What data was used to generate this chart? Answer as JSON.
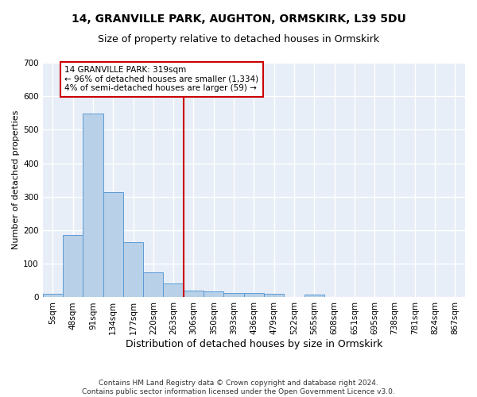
{
  "title1": "14, GRANVILLE PARK, AUGHTON, ORMSKIRK, L39 5DU",
  "title2": "Size of property relative to detached houses in Ormskirk",
  "xlabel": "Distribution of detached houses by size in Ormskirk",
  "ylabel": "Number of detached properties",
  "footer1": "Contains HM Land Registry data © Crown copyright and database right 2024.",
  "footer2": "Contains public sector information licensed under the Open Government Licence v3.0.",
  "bin_labels": [
    "5sqm",
    "48sqm",
    "91sqm",
    "134sqm",
    "177sqm",
    "220sqm",
    "263sqm",
    "306sqm",
    "350sqm",
    "393sqm",
    "436sqm",
    "479sqm",
    "522sqm",
    "565sqm",
    "608sqm",
    "651sqm",
    "695sqm",
    "738sqm",
    "781sqm",
    "824sqm",
    "867sqm"
  ],
  "bar_values": [
    10,
    185,
    548,
    315,
    165,
    75,
    42,
    20,
    18,
    14,
    12,
    10,
    0,
    8,
    0,
    0,
    0,
    0,
    0,
    0,
    0
  ],
  "bar_color": "#b8d0e8",
  "bar_edge_color": "#5b9bd5",
  "background_color": "#e8eef7",
  "grid_color": "#ffffff",
  "red_line_x": 7,
  "annotation_text_line1": "14 GRANVILLE PARK: 319sqm",
  "annotation_text_line2": "← 96% of detached houses are smaller (1,334)",
  "annotation_text_line3": "4% of semi-detached houses are larger (59) →",
  "annotation_box_color": "#ffffff",
  "annotation_box_edge": "#cc0000",
  "red_line_color": "#cc0000",
  "ylim": [
    0,
    700
  ],
  "yticks": [
    0,
    100,
    200,
    300,
    400,
    500,
    600,
    700
  ],
  "title1_fontsize": 10,
  "title2_fontsize": 9,
  "ylabel_fontsize": 8,
  "xlabel_fontsize": 9,
  "tick_fontsize": 7.5,
  "footer_fontsize": 6.5,
  "annot_fontsize": 7.5
}
